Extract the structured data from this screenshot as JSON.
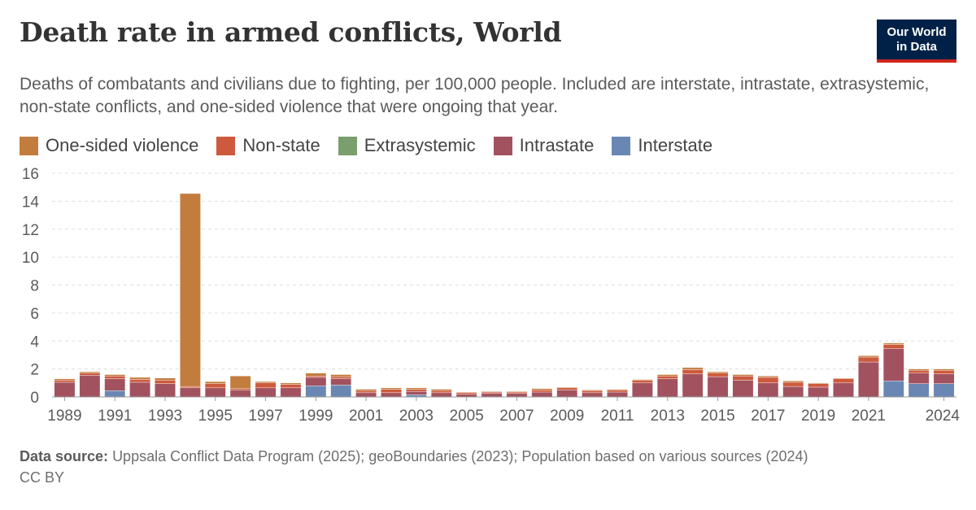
{
  "header": {
    "title": "Death rate in armed conflicts, World",
    "subtitle": "Deaths of combatants and civilians due to fighting, per 100,000 people. Included are interstate, intrastate, extrasystemic, non-state conflicts, and one-sided violence that were ongoing that year.",
    "logo_line1": "Our World",
    "logo_line2": "in Data"
  },
  "legend": [
    {
      "name": "One-sided violence",
      "color": "#c27c3e"
    },
    {
      "name": "Non-state",
      "color": "#cd5a3d"
    },
    {
      "name": "Extrasystemic",
      "color": "#7b9e6d"
    },
    {
      "name": "Intrastate",
      "color": "#a2525f"
    },
    {
      "name": "Interstate",
      "color": "#6a87b4"
    }
  ],
  "footer": {
    "source_label": "Data source:",
    "source_text": "Uppsala Conflict Data Program (2025); geoBoundaries (2023); Population based on various sources (2024)",
    "license": "CC BY"
  },
  "chart_data": {
    "type": "bar",
    "stacked": true,
    "categories": [
      1989,
      1990,
      1991,
      1992,
      1993,
      1994,
      1995,
      1996,
      1997,
      1998,
      1999,
      2000,
      2001,
      2002,
      2003,
      2004,
      2005,
      2006,
      2007,
      2008,
      2009,
      2010,
      2011,
      2012,
      2013,
      2014,
      2015,
      2016,
      2017,
      2018,
      2019,
      2020,
      2021,
      2022,
      2023,
      2024
    ],
    "x_tick_labels": [
      "1989",
      "1991",
      "1993",
      "1995",
      "1997",
      "1999",
      "2001",
      "2003",
      "2005",
      "2007",
      "2009",
      "2011",
      "2013",
      "2015",
      "2017",
      "2019",
      "2021",
      "2024"
    ],
    "ylim": [
      0,
      16
    ],
    "y_ticks": [
      0,
      2,
      4,
      6,
      8,
      10,
      12,
      14,
      16
    ],
    "grid": "horizontal dashed",
    "series": [
      {
        "name": "Interstate",
        "color": "#6a87b4",
        "values": [
          0,
          0,
          0.45,
          0,
          0,
          0,
          0,
          0,
          0,
          0,
          0.8,
          0.85,
          0,
          0,
          0.15,
          0,
          0,
          0,
          0,
          0,
          0,
          0,
          0,
          0,
          0,
          0,
          0,
          0,
          0,
          0,
          0,
          0,
          0,
          1.15,
          0.95,
          0.95
        ]
      },
      {
        "name": "Extrasystemic",
        "color": "#7b9e6d",
        "values": [
          0,
          0,
          0,
          0,
          0,
          0,
          0,
          0,
          0,
          0,
          0,
          0,
          0,
          0,
          0,
          0,
          0,
          0,
          0,
          0,
          0,
          0,
          0,
          0,
          0,
          0,
          0,
          0,
          0,
          0,
          0,
          0,
          0,
          0,
          0,
          0
        ]
      },
      {
        "name": "Intrastate",
        "color": "#a2525f",
        "values": [
          1.05,
          1.55,
          0.85,
          1.05,
          0.95,
          0.65,
          0.65,
          0.5,
          0.65,
          0.65,
          0.6,
          0.45,
          0.3,
          0.3,
          0.25,
          0.3,
          0.2,
          0.25,
          0.25,
          0.35,
          0.5,
          0.3,
          0.35,
          1.0,
          1.3,
          1.65,
          1.45,
          1.2,
          1.0,
          0.75,
          0.7,
          1.0,
          2.5,
          2.3,
          0.75,
          0.7
        ]
      },
      {
        "name": "Non-state",
        "color": "#cd5a3d",
        "values": [
          0.15,
          0.15,
          0.2,
          0.2,
          0.25,
          0.1,
          0.3,
          0.1,
          0.35,
          0.25,
          0.1,
          0.15,
          0.15,
          0.25,
          0.15,
          0.15,
          0.1,
          0.1,
          0.1,
          0.15,
          0.15,
          0.15,
          0.15,
          0.2,
          0.2,
          0.3,
          0.25,
          0.3,
          0.4,
          0.3,
          0.25,
          0.3,
          0.35,
          0.3,
          0.2,
          0.25
        ]
      },
      {
        "name": "One-sided violence",
        "color": "#c27c3e",
        "values": [
          0.1,
          0.1,
          0.1,
          0.15,
          0.15,
          13.8,
          0.15,
          0.9,
          0.1,
          0.1,
          0.2,
          0.15,
          0.1,
          0.1,
          0.1,
          0.1,
          0.05,
          0.05,
          0.05,
          0.1,
          0.05,
          0.05,
          0.05,
          0.05,
          0.1,
          0.15,
          0.1,
          0.1,
          0.1,
          0.1,
          0.05,
          0.05,
          0.1,
          0.1,
          0.1,
          0.1
        ]
      }
    ]
  }
}
